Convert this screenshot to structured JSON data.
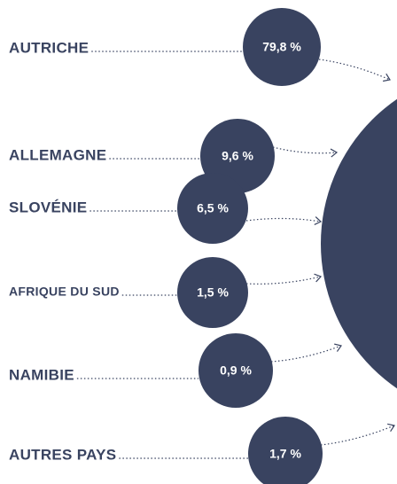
{
  "chart_data": {
    "type": "bubble-list",
    "categories": [
      "AUTRICHE",
      "ALLEMAGNE",
      "SLOVÉNIE",
      "AFRIQUE DU SUD",
      "NAMIBIE",
      "AUTRES PAYS"
    ],
    "values": [
      79.8,
      9.6,
      6.5,
      1.5,
      0.9,
      1.7
    ],
    "value_labels": [
      "79,8 %",
      "9,6 %",
      "6,5 %",
      "1,5 %",
      "0,9 %",
      "1,7 %"
    ],
    "color": "#394360"
  }
}
